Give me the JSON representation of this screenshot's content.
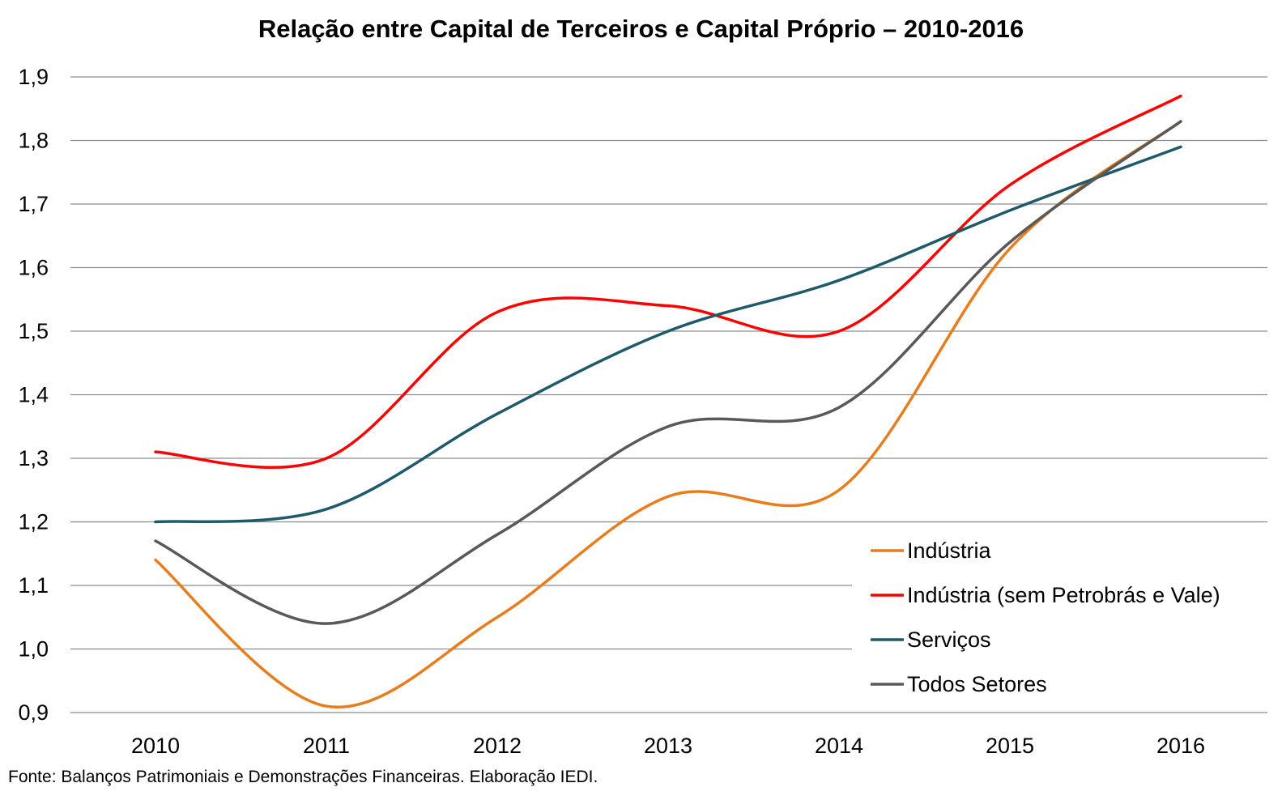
{
  "chart_data": {
    "type": "line",
    "title": "Relação entre Capital de Terceiros e Capital Próprio – 2010-2016",
    "xlabel": "",
    "ylabel": "",
    "x": [
      "2010",
      "2011",
      "2012",
      "2013",
      "2014",
      "2015",
      "2016"
    ],
    "ylim": [
      0.9,
      1.9
    ],
    "yticks": [
      "0,9",
      "1,0",
      "1,1",
      "1,2",
      "1,3",
      "1,4",
      "1,5",
      "1,6",
      "1,7",
      "1,8",
      "1,9"
    ],
    "grid": true,
    "legend_position": "bottom-right",
    "smooth": true,
    "series": [
      {
        "name": "Indústria",
        "color": "#E87D1E",
        "values": [
          1.14,
          0.91,
          1.05,
          1.24,
          1.25,
          1.63,
          1.83
        ]
      },
      {
        "name": "Indústria (sem Petrobrás e Vale)",
        "color": "#FF0000",
        "values": [
          1.31,
          1.3,
          1.53,
          1.54,
          1.5,
          1.73,
          1.87
        ]
      },
      {
        "name": "Serviços",
        "color": "#1F5A6B",
        "values": [
          1.2,
          1.22,
          1.37,
          1.5,
          1.58,
          1.69,
          1.79
        ]
      },
      {
        "name": "Todos Setores",
        "color": "#595959",
        "values": [
          1.17,
          1.04,
          1.18,
          1.35,
          1.38,
          1.64,
          1.83
        ]
      }
    ]
  },
  "source_note": "Fonte: Balanços Patrimoniais e Demonstrações Financeiras. Elaboração IEDI."
}
